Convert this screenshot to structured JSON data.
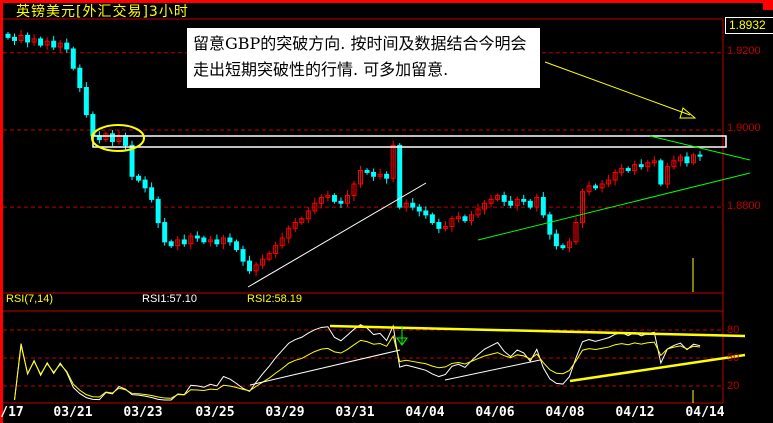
{
  "title": "英镑美元[外汇交易]3小时",
  "last_price": "1.8932",
  "annotation": "留意GBP的突破方向. 按时间及数据结合今明会走出短期突破性的行情. 可多加留意.",
  "colors": {
    "up": "#ff0000",
    "down": "#00ffff",
    "grid": "#c00000",
    "rsi1": "#ffffff",
    "rsi2": "#ffff00",
    "trend_green": "#00ff00",
    "trend_yellow": "#ffff00"
  },
  "rsi": {
    "label": "RSI(7,14)",
    "rsi1": "RSI1:57.10",
    "rsi2": "RSI2:58.19"
  },
  "chart_data": [
    {
      "type": "candlestick",
      "title": "英镑美元[外汇交易]3小时",
      "y_ticks": [
        "1.9200",
        "1.9000",
        "1.8800"
      ],
      "ylim": [
        1.858,
        1.9285
      ],
      "x_ticks": [
        "/17",
        "03/21",
        "03/23",
        "03/25",
        "03/29",
        "03/31",
        "04/04",
        "04/06",
        "04/08",
        "04/12",
        "04/14"
      ],
      "grid": true,
      "closes": [
        1.924,
        1.9232,
        1.9245,
        1.9228,
        1.9236,
        1.922,
        1.923,
        1.9215,
        1.9225,
        1.921,
        1.916,
        1.911,
        1.904,
        1.8985,
        1.8975,
        1.899,
        1.897,
        1.8985,
        1.896,
        1.888,
        1.887,
        1.885,
        1.882,
        1.876,
        1.871,
        1.87,
        1.8715,
        1.8705,
        1.8725,
        1.872,
        1.871,
        1.8715,
        1.8705,
        1.872,
        1.871,
        1.869,
        1.866,
        1.8635,
        1.865,
        1.8665,
        1.868,
        1.87,
        1.872,
        1.8745,
        1.876,
        1.877,
        1.879,
        1.881,
        1.8825,
        1.883,
        1.8815,
        1.881,
        1.883,
        1.886,
        1.8895,
        1.889,
        1.888,
        1.8885,
        1.8875,
        1.896,
        1.88,
        1.881,
        1.88,
        1.879,
        1.878,
        1.876,
        1.8745,
        1.875,
        1.877,
        1.8775,
        1.8765,
        1.878,
        1.8795,
        1.881,
        1.882,
        1.883,
        1.8815,
        1.8805,
        1.882,
        1.8815,
        1.88,
        1.8825,
        1.878,
        1.873,
        1.87,
        1.8695,
        1.871,
        1.876,
        1.884,
        1.8855,
        1.885,
        1.886,
        1.887,
        1.889,
        1.89,
        1.8895,
        1.891,
        1.8905,
        1.8915,
        1.892,
        1.886,
        1.8905,
        1.892,
        1.893,
        1.8915,
        1.8935,
        1.8932
      ]
    },
    {
      "type": "line",
      "title": "RSI(7,14)",
      "y_ticks": [
        "80",
        "50",
        "20"
      ],
      "ylim": [
        0,
        100
      ],
      "series": [
        {
          "name": "RSI1",
          "last": 57.1
        },
        {
          "name": "RSI2",
          "last": 58.19
        }
      ]
    }
  ]
}
